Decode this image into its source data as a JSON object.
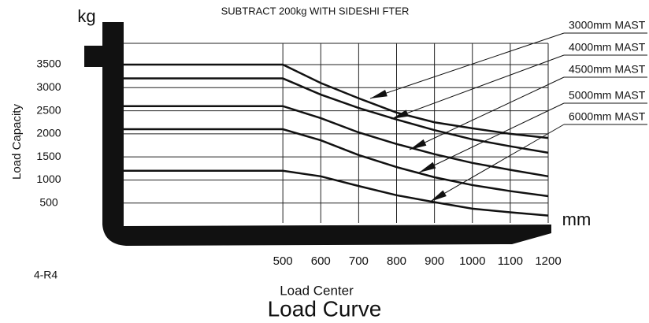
{
  "chart_data": {
    "type": "line",
    "title": "SUBTRACT 200kg WITH SIDESHI FTER",
    "title_bottom": "Load Curve",
    "x_label": "Load Center",
    "y_label": "Load Capacity",
    "y_unit": "kg",
    "x_unit": "mm",
    "model": "4-R4",
    "x": [
      80,
      500,
      600,
      700,
      800,
      900,
      1000,
      1100,
      1200
    ],
    "xlim": [
      80,
      1200
    ],
    "xticks": [
      500,
      600,
      700,
      800,
      900,
      1000,
      1100,
      1200
    ],
    "ylim": [
      70,
      3960
    ],
    "yticks": [
      500,
      1000,
      1500,
      2000,
      2500,
      3000,
      3500
    ],
    "grid": true,
    "series": [
      {
        "name": "3000mm MAST",
        "color": "#111111",
        "values": [
          3500,
          3500,
          3100,
          2770,
          2460,
          2250,
          2120,
          2000,
          1910
        ]
      },
      {
        "name": "4000mm MAST",
        "color": "#111111",
        "values": [
          3200,
          3200,
          2850,
          2560,
          2310,
          2080,
          1880,
          1730,
          1590
        ]
      },
      {
        "name": "4500mm MAST",
        "color": "#111111",
        "values": [
          2600,
          2600,
          2340,
          2030,
          1780,
          1560,
          1370,
          1220,
          1080
        ]
      },
      {
        "name": "5000mm MAST",
        "color": "#111111",
        "values": [
          2100,
          2100,
          1860,
          1540,
          1280,
          1060,
          890,
          760,
          650
        ]
      },
      {
        "name": "6000mm MAST",
        "color": "#111111",
        "values": [
          1200,
          1200,
          1080,
          870,
          670,
          520,
          380,
          300,
          230
        ]
      }
    ]
  }
}
